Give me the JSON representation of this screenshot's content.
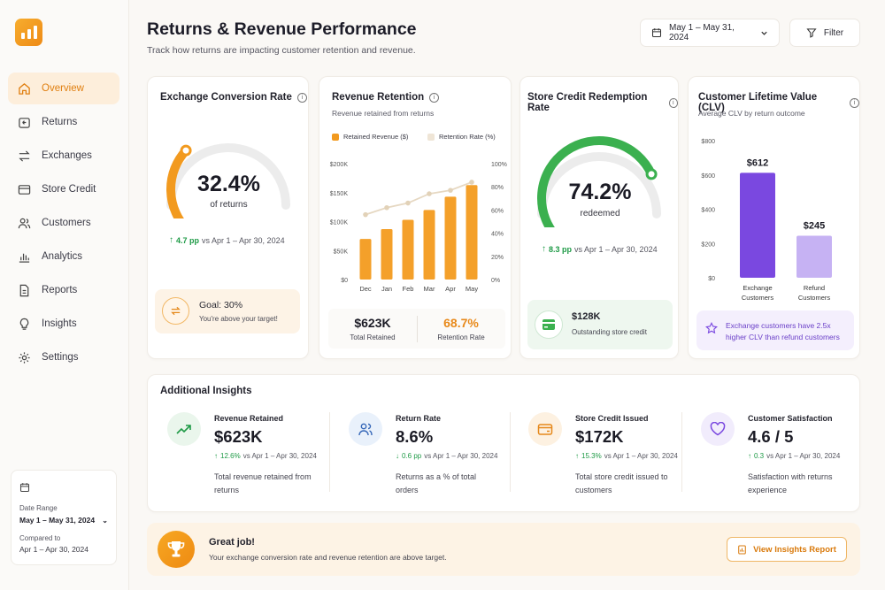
{
  "sidebar": {
    "items": [
      {
        "label": "Overview",
        "icon": "home-icon"
      },
      {
        "label": "Returns",
        "icon": "return-icon"
      },
      {
        "label": "Exchanges",
        "icon": "exchange-icon"
      },
      {
        "label": "Store Credit",
        "icon": "credit-card-icon"
      },
      {
        "label": "Customers",
        "icon": "users-icon"
      },
      {
        "label": "Analytics",
        "icon": "bar-chart-icon"
      },
      {
        "label": "Reports",
        "icon": "document-icon"
      },
      {
        "label": "Insights",
        "icon": "lightbulb-icon"
      },
      {
        "label": "Settings",
        "icon": "gear-icon"
      }
    ],
    "date_card": {
      "label": "Date Range",
      "value": "May 1 – May 31, 2024",
      "compared_label": "Compared to",
      "compared_value": "Apr 1 – Apr 30, 2024"
    }
  },
  "header": {
    "title": "Returns & Revenue Performance",
    "subtitle": "Track how returns are impacting customer retention and revenue.",
    "date_range": "May 1 – May 31, 2024",
    "filter_label": "Filter"
  },
  "exchange": {
    "title": "Exchange Conversion Rate",
    "value": "32.4%",
    "caption": "of returns",
    "progress": 0.324,
    "delta": "4.7 pp",
    "delta_vs": "vs Apr 1 – Apr 30, 2024",
    "goal_title": "Goal: 30%",
    "goal_note": "You're above your target!"
  },
  "revenue": {
    "title": "Revenue Retention",
    "subtitle": "Revenue retained from returns",
    "legend_bar": "Retained Revenue ($)",
    "legend_line": "Retention Rate (%)",
    "total_value": "$623K",
    "total_label": "Total Retained",
    "rate_value": "68.7%",
    "rate_label": "Retention Rate"
  },
  "credit": {
    "title": "Store Credit Redemption Rate",
    "value": "74.2%",
    "caption": "redeemed",
    "progress": 0.742,
    "delta": "8.3 pp",
    "delta_vs": "vs Apr 1 – Apr 30, 2024",
    "box_value": "$128K",
    "box_label": "Outstanding store credit"
  },
  "clv": {
    "title": "Customer Lifetime Value (CLV)",
    "subtitle": "Average CLV by return outcome",
    "note": "Exchange customers have 2.5x higher CLV than refund customers"
  },
  "insights": {
    "title": "Additional Insights",
    "items": [
      {
        "label": "Revenue Retained",
        "value": "$623K",
        "delta": "12.6%",
        "direction": "up",
        "vs": "vs Apr 1 – Apr 30, 2024",
        "desc": "Total revenue retained from returns",
        "icon": "trend-up-icon"
      },
      {
        "label": "Return Rate",
        "value": "8.6%",
        "delta": "0.6 pp",
        "direction": "down",
        "vs": "vs Apr 1 – Apr 30, 2024",
        "desc": "Returns as a % of total orders",
        "icon": "users-icon"
      },
      {
        "label": "Store Credit Issued",
        "value": "$172K",
        "delta": "15.3%",
        "direction": "up",
        "vs": "vs Apr 1 – Apr 30, 2024",
        "desc": "Total store credit issued to customers",
        "icon": "wallet-icon"
      },
      {
        "label": "Customer Satisfaction",
        "value": "4.6 / 5",
        "delta": "0.3",
        "direction": "up",
        "vs": "vs Apr 1 – Apr 30, 2024",
        "desc": "Satisfaction with returns experience",
        "icon": "heart-icon"
      }
    ]
  },
  "banner": {
    "title": "Great job!",
    "text": "Your exchange conversion rate and revenue retention are above target.",
    "button": "View Insights Report"
  },
  "colors": {
    "accent": "#f29a1f",
    "green": "#3bb04f",
    "purple": "#7a48e0",
    "up": "#1e9a46"
  },
  "chart_data": [
    {
      "type": "bar",
      "categories": [
        "Dec",
        "Jan",
        "Feb",
        "Mar",
        "Apr",
        "May"
      ],
      "series": [
        {
          "name": "Retained Revenue ($)",
          "values": [
            70,
            87,
            103,
            120,
            143,
            163
          ],
          "axis": "left"
        },
        {
          "name": "Retention Rate (%)",
          "type": "line",
          "values": [
            56,
            62,
            66,
            74,
            77,
            84
          ],
          "axis": "right"
        }
      ],
      "y_ticks_left": [
        "$0",
        "$50K",
        "$100K",
        "$150K",
        "$200K"
      ],
      "y_ticks_right": [
        "0%",
        "20%",
        "40%",
        "60%",
        "80%",
        "100%"
      ],
      "ylim": [
        0,
        200
      ],
      "ylim_right": [
        0,
        100
      ]
    },
    {
      "type": "bar",
      "categories": [
        "Exchange Customers",
        "Refund Customers"
      ],
      "values": [
        612,
        245
      ],
      "data_labels": [
        "$612",
        "$245"
      ],
      "y_ticks": [
        "$0",
        "$200",
        "$400",
        "$600",
        "$800"
      ],
      "ylim": [
        0,
        800
      ]
    }
  ]
}
